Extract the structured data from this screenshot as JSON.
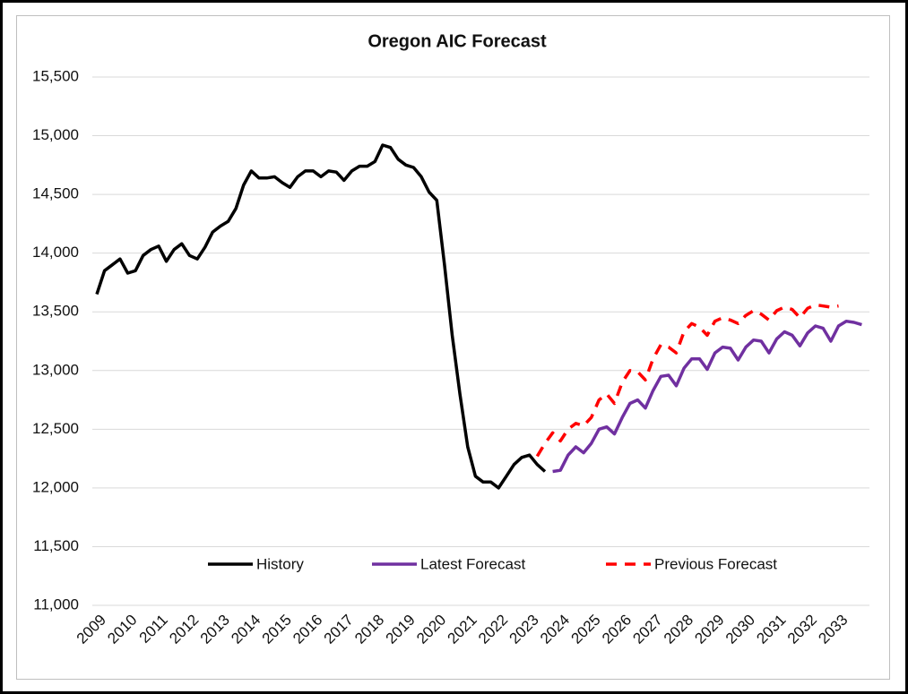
{
  "chart_data": {
    "type": "line",
    "title": "Oregon AIC Forecast",
    "xlim": [
      2009,
      2034
    ],
    "xticks": [
      2009,
      2010,
      2011,
      2012,
      2013,
      2014,
      2015,
      2016,
      2017,
      2018,
      2019,
      2020,
      2021,
      2022,
      2023,
      2024,
      2025,
      2026,
      2027,
      2028,
      2029,
      2030,
      2031,
      2032,
      2033
    ],
    "ylim": [
      11000,
      15500
    ],
    "yticks": [
      {
        "value": 11000,
        "label": "11,000"
      },
      {
        "value": 11500,
        "label": "11,500"
      },
      {
        "value": 12000,
        "label": "12,000"
      },
      {
        "value": 12500,
        "label": "12,500"
      },
      {
        "value": 13000,
        "label": "13,000"
      },
      {
        "value": 13500,
        "label": "13,500"
      },
      {
        "value": 14000,
        "label": "14,000"
      },
      {
        "value": 14500,
        "label": "14,500"
      },
      {
        "value": 15000,
        "label": "15,000"
      },
      {
        "value": 15500,
        "label": "15,500"
      }
    ],
    "grid": true,
    "legend": "bottom",
    "series": [
      {
        "name": "History",
        "color": "#000000",
        "dashed": false,
        "x": [
          2009,
          2009.25,
          2009.5,
          2009.75,
          2010,
          2010.25,
          2010.5,
          2010.75,
          2011,
          2011.25,
          2011.5,
          2011.75,
          2012,
          2012.25,
          2012.5,
          2012.75,
          2013,
          2013.25,
          2013.5,
          2013.75,
          2014,
          2014.25,
          2014.5,
          2014.75,
          2015,
          2015.25,
          2015.5,
          2015.75,
          2016,
          2016.25,
          2016.5,
          2016.75,
          2017,
          2017.25,
          2017.5,
          2017.75,
          2018,
          2018.25,
          2018.5,
          2018.75,
          2019,
          2019.25,
          2019.5,
          2019.75,
          2020,
          2020.25,
          2020.5,
          2020.75,
          2021,
          2021.25,
          2021.5,
          2021.75,
          2022,
          2022.25,
          2022.5,
          2022.75,
          2023,
          2023.25,
          2023.5
        ],
        "values": [
          13650,
          13850,
          13900,
          13950,
          13830,
          13850,
          13980,
          14030,
          14060,
          13930,
          14030,
          14080,
          13980,
          13950,
          14050,
          14180,
          14230,
          14270,
          14380,
          14580,
          14700,
          14640,
          14640,
          14650,
          14600,
          14560,
          14650,
          14700,
          14700,
          14650,
          14700,
          14690,
          14620,
          14700,
          14740,
          14740,
          14780,
          14920,
          14900,
          14800,
          14750,
          14730,
          14650,
          14520,
          14450,
          13900,
          13300,
          12800,
          12350,
          12100,
          12050,
          12050,
          12000,
          12100,
          12200,
          12260,
          12280,
          12200,
          12140
        ]
      },
      {
        "name": "Latest Forecast",
        "color": "#7030a0",
        "dashed": false,
        "x": [
          2023.75,
          2024,
          2024.25,
          2024.5,
          2024.75,
          2025,
          2025.25,
          2025.5,
          2025.75,
          2026,
          2026.25,
          2026.5,
          2026.75,
          2027,
          2027.25,
          2027.5,
          2027.75,
          2028,
          2028.25,
          2028.5,
          2028.75,
          2029,
          2029.25,
          2029.5,
          2029.75,
          2030,
          2030.25,
          2030.5,
          2030.75,
          2031,
          2031.25,
          2031.5,
          2031.75,
          2032,
          2032.25,
          2032.5,
          2032.75,
          2033,
          2033.25,
          2033.5,
          2033.75
        ],
        "values": [
          12140,
          12150,
          12280,
          12350,
          12300,
          12380,
          12500,
          12520,
          12460,
          12600,
          12720,
          12750,
          12680,
          12830,
          12950,
          12960,
          12870,
          13020,
          13100,
          13100,
          13010,
          13150,
          13200,
          13190,
          13090,
          13200,
          13260,
          13250,
          13150,
          13270,
          13330,
          13300,
          13210,
          13320,
          13380,
          13360,
          13250,
          13380,
          13420,
          13410,
          13390
        ]
      },
      {
        "name": "Previous Forecast",
        "color": "#ff0000",
        "dashed": true,
        "x": [
          2023.25,
          2023.5,
          2023.75,
          2024,
          2024.25,
          2024.5,
          2024.75,
          2025,
          2025.25,
          2025.5,
          2025.75,
          2026,
          2026.25,
          2026.5,
          2026.75,
          2027,
          2027.25,
          2027.5,
          2027.75,
          2028,
          2028.25,
          2028.5,
          2028.75,
          2029,
          2029.25,
          2029.5,
          2029.75,
          2030,
          2030.25,
          2030.5,
          2030.75,
          2031,
          2031.25,
          2031.5,
          2031.75,
          2032,
          2032.25,
          2032.5,
          2032.75,
          2033
        ],
        "values": [
          12270,
          12380,
          12470,
          12400,
          12500,
          12550,
          12530,
          12600,
          12750,
          12800,
          12720,
          12900,
          13000,
          12990,
          12920,
          13100,
          13220,
          13200,
          13150,
          13330,
          13400,
          13370,
          13300,
          13420,
          13450,
          13430,
          13400,
          13470,
          13510,
          13480,
          13430,
          13510,
          13540,
          13520,
          13450,
          13530,
          13560,
          13550,
          13540,
          13550
        ]
      }
    ]
  }
}
